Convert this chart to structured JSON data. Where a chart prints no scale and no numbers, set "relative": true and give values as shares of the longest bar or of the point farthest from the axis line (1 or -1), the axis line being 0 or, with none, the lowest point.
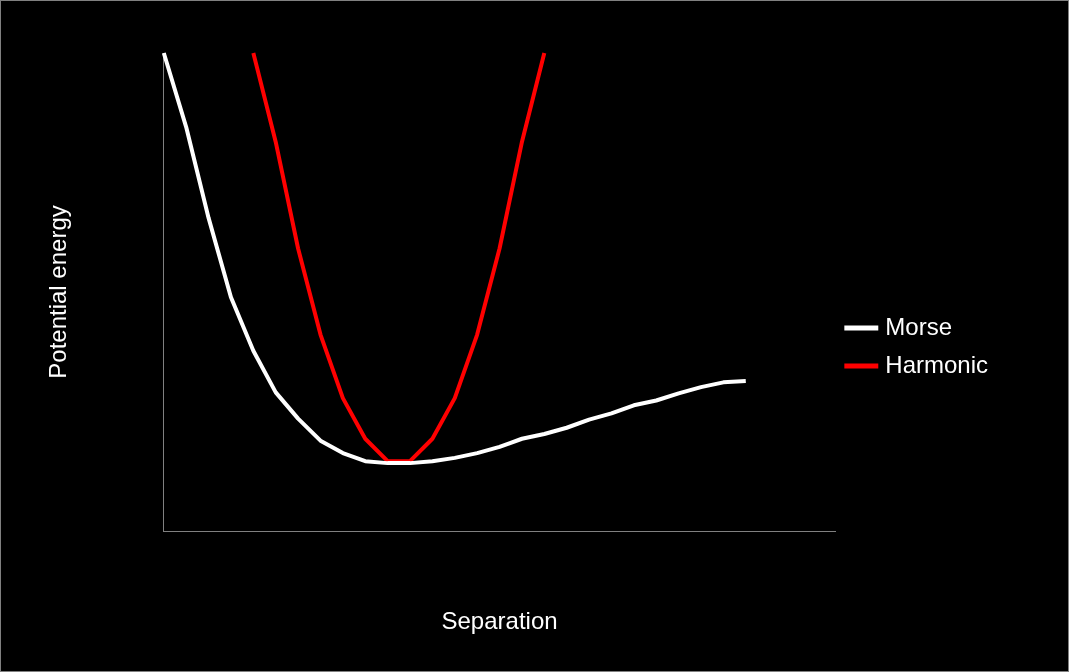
{
  "chart_data": {
    "type": "line",
    "relative": true,
    "xlabel": "Separation",
    "ylabel": "Potential energy",
    "legend": "right",
    "marker": "none",
    "grid": false,
    "categories": [
      null,
      null,
      null,
      null,
      null,
      null,
      null,
      null,
      null,
      null,
      null,
      null,
      null,
      null,
      null,
      null,
      null,
      null,
      null,
      null,
      null,
      null,
      null,
      null,
      null,
      null,
      null,
      null,
      null,
      null,
      null
    ],
    "series": [
      {
        "name": "Morse",
        "color": "#ffffff",
        "values": [
          1.0,
          0.845,
          0.655,
          0.489,
          0.377,
          0.29,
          0.235,
          0.189,
          0.163,
          0.146,
          0.142,
          0.142,
          0.146,
          0.153,
          0.163,
          0.176,
          0.193,
          0.203,
          0.216,
          0.233,
          0.246,
          0.263,
          0.273,
          0.288,
          0.301,
          0.311,
          0.314,
          null,
          null,
          null,
          null
        ]
      },
      {
        "name": "Harmonic",
        "color": "#ff0000",
        "values": [
          null,
          null,
          null,
          null,
          1.0,
          0.814,
          0.591,
          0.411,
          0.278,
          0.193,
          0.146,
          0.146,
          0.193,
          0.278,
          0.411,
          0.591,
          0.814,
          1.0,
          null,
          null,
          null,
          null,
          null,
          null,
          null,
          null,
          null,
          null,
          null,
          null,
          null
        ]
      }
    ]
  }
}
